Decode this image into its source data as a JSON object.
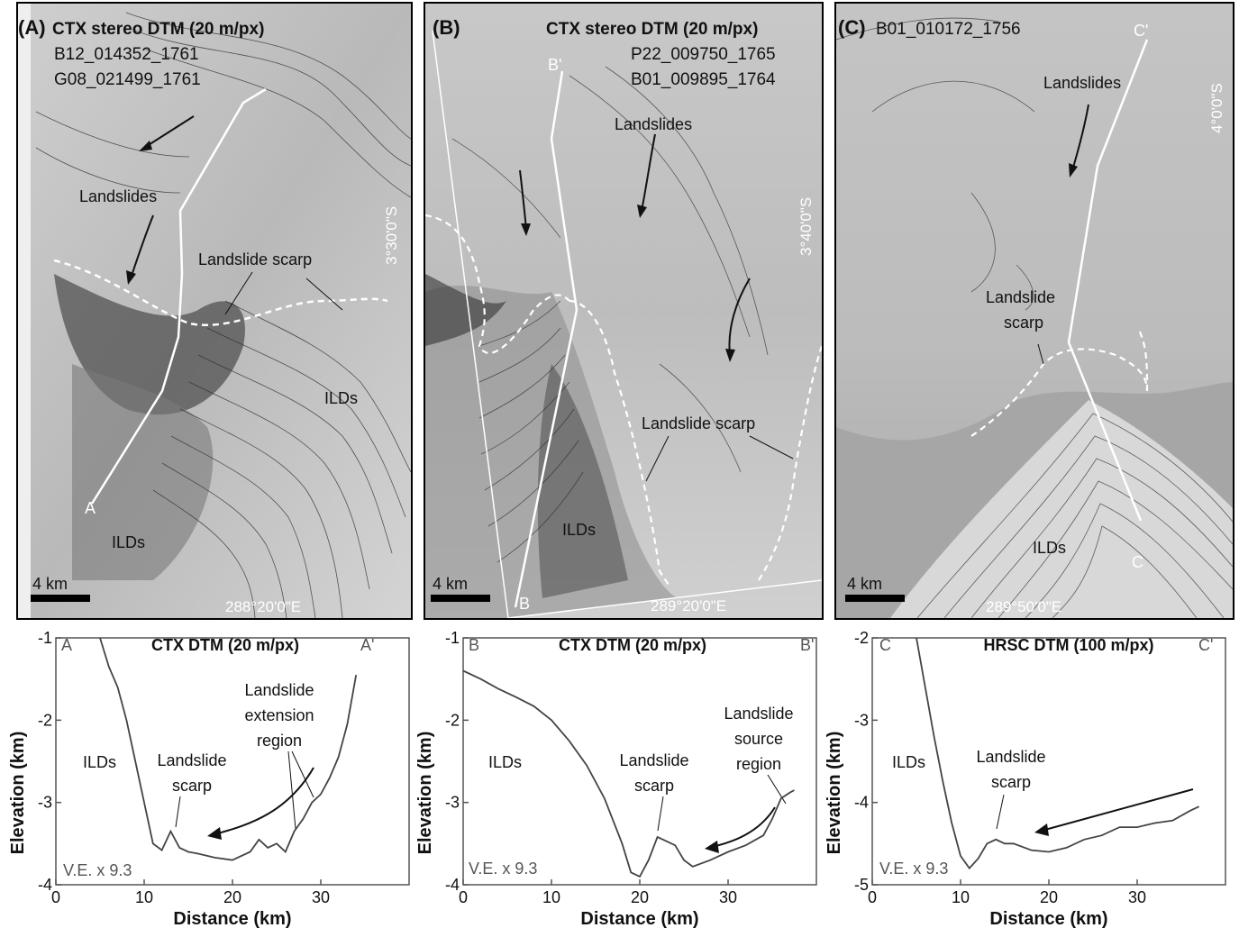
{
  "panels": [
    {
      "letter": "(A)",
      "title": "CTX stereo DTM (20 m/px)",
      "ids": [
        "B12_014352_1761",
        "G08_021499_1761"
      ],
      "lat": "3°30'0\"S",
      "lon": "288°20'0\"E",
      "scale": "4 km",
      "start": "A",
      "end": "",
      "labels": {
        "landslides": "Landslides",
        "scarp": "Landslide scarp",
        "ilds1": "ILDs",
        "ilds2": "ILDs"
      }
    },
    {
      "letter": "(B)",
      "title": "CTX stereo DTM (20 m/px)",
      "ids": [
        "P22_009750_1765",
        "B01_009895_1764"
      ],
      "lat": "3°40'0\"S",
      "lon": "289°20'0\"E",
      "scale": "4 km",
      "start": "B",
      "end": "B'",
      "labels": {
        "landslides": "Landslides",
        "scarp": "Landslide scarp",
        "ilds": "ILDs"
      }
    },
    {
      "letter": "(C)",
      "title": "B01_010172_1756",
      "lat": "4°0'0\"S",
      "lon": "289°50'0\"E",
      "scale": "4 km",
      "start": "C",
      "end": "C'",
      "labels": {
        "landslides": "Landslides",
        "scarp1": "Landslide",
        "scarp2": "scarp",
        "ilds": "ILDs"
      }
    }
  ],
  "profiles": [
    {
      "title": "CTX DTM (20 m/px)",
      "start": "A",
      "end": "A'",
      "ylabel": "Elevation (km)",
      "xlabel": "Distance (km)",
      "ve": "V.E. x 9.3",
      "yticks": [
        "-1",
        "-2",
        "-3",
        "-4"
      ],
      "xticks": [
        "0",
        "10",
        "20",
        "30"
      ],
      "ann": {
        "ilds": "ILDs",
        "scarp1": "Landslide",
        "scarp2": "scarp",
        "ext1": "Landslide",
        "ext2": "extension",
        "ext3": "region"
      }
    },
    {
      "title": "CTX DTM (20 m/px)",
      "start": "B",
      "end": "B'",
      "ylabel": "Elevation (km)",
      "xlabel": "Distance (km)",
      "ve": "V.E. x 9.3",
      "yticks": [
        "-1",
        "-2",
        "-3",
        "-4"
      ],
      "xticks": [
        "0",
        "10",
        "20",
        "30"
      ],
      "ann": {
        "ilds": "ILDs",
        "scarp1": "Landslide",
        "scarp2": "scarp",
        "src1": "Landslide",
        "src2": "source",
        "src3": "region"
      }
    },
    {
      "title": "HRSC DTM (100 m/px)",
      "start": "C",
      "end": "C'",
      "ylabel": "Elevation (km)",
      "xlabel": "Distance (km)",
      "ve": "V.E. x 9.3",
      "yticks": [
        "-2",
        "-3",
        "-4",
        "-5"
      ],
      "xticks": [
        "0",
        "10",
        "20",
        "30"
      ],
      "ann": {
        "ilds": "ILDs",
        "scarp1": "Landslide",
        "scarp2": "scarp"
      }
    }
  ],
  "chart_data": [
    {
      "type": "line",
      "title": "CTX DTM (20 m/px)",
      "xlabel": "Distance (km)",
      "ylabel": "Elevation (km)",
      "xlim": [
        0,
        40
      ],
      "ylim": [
        -4,
        -1
      ],
      "x": [
        5,
        6,
        7,
        8,
        9,
        10,
        11,
        12,
        13,
        14,
        15,
        16,
        18,
        20,
        22,
        23,
        24,
        25,
        26,
        27,
        28,
        29,
        30,
        31,
        32,
        33,
        34
      ],
      "y": [
        -1.0,
        -1.35,
        -1.6,
        -2.0,
        -2.5,
        -3.0,
        -3.5,
        -3.58,
        -3.35,
        -3.55,
        -3.6,
        -3.62,
        -3.67,
        -3.7,
        -3.6,
        -3.45,
        -3.55,
        -3.5,
        -3.6,
        -3.35,
        -3.2,
        -3.0,
        -2.9,
        -2.7,
        -2.45,
        -2.05,
        -1.45
      ]
    },
    {
      "type": "line",
      "title": "CTX DTM (20 m/px)",
      "xlabel": "Distance (km)",
      "ylabel": "Elevation (km)",
      "xlim": [
        0,
        40
      ],
      "ylim": [
        -4,
        -1
      ],
      "x": [
        0,
        2,
        4,
        6,
        8,
        10,
        12,
        14,
        16,
        18,
        19,
        20,
        21,
        22,
        23,
        24,
        25,
        26,
        28,
        30,
        32,
        34,
        35,
        36,
        37,
        37.5
      ],
      "y": [
        -1.4,
        -1.5,
        -1.62,
        -1.72,
        -1.83,
        -2.0,
        -2.25,
        -2.55,
        -2.95,
        -3.5,
        -3.85,
        -3.9,
        -3.7,
        -3.42,
        -3.47,
        -3.52,
        -3.7,
        -3.78,
        -3.7,
        -3.6,
        -3.52,
        -3.4,
        -3.2,
        -2.95,
        -2.88,
        -2.85
      ]
    },
    {
      "type": "line",
      "title": "HRSC DTM (100 m/px)",
      "xlabel": "Distance (km)",
      "ylabel": "Elevation (km)",
      "xlim": [
        0,
        40
      ],
      "ylim": [
        -5,
        -2
      ],
      "x": [
        5,
        6,
        7,
        8,
        9,
        10,
        11,
        12,
        13,
        14,
        15,
        16,
        18,
        20,
        22,
        24,
        26,
        28,
        30,
        32,
        34,
        36,
        37
      ],
      "y": [
        -2.0,
        -2.6,
        -3.2,
        -3.75,
        -4.25,
        -4.65,
        -4.8,
        -4.68,
        -4.5,
        -4.45,
        -4.5,
        -4.5,
        -4.58,
        -4.6,
        -4.55,
        -4.45,
        -4.4,
        -4.3,
        -4.3,
        -4.25,
        -4.22,
        -4.1,
        -4.05
      ]
    }
  ]
}
